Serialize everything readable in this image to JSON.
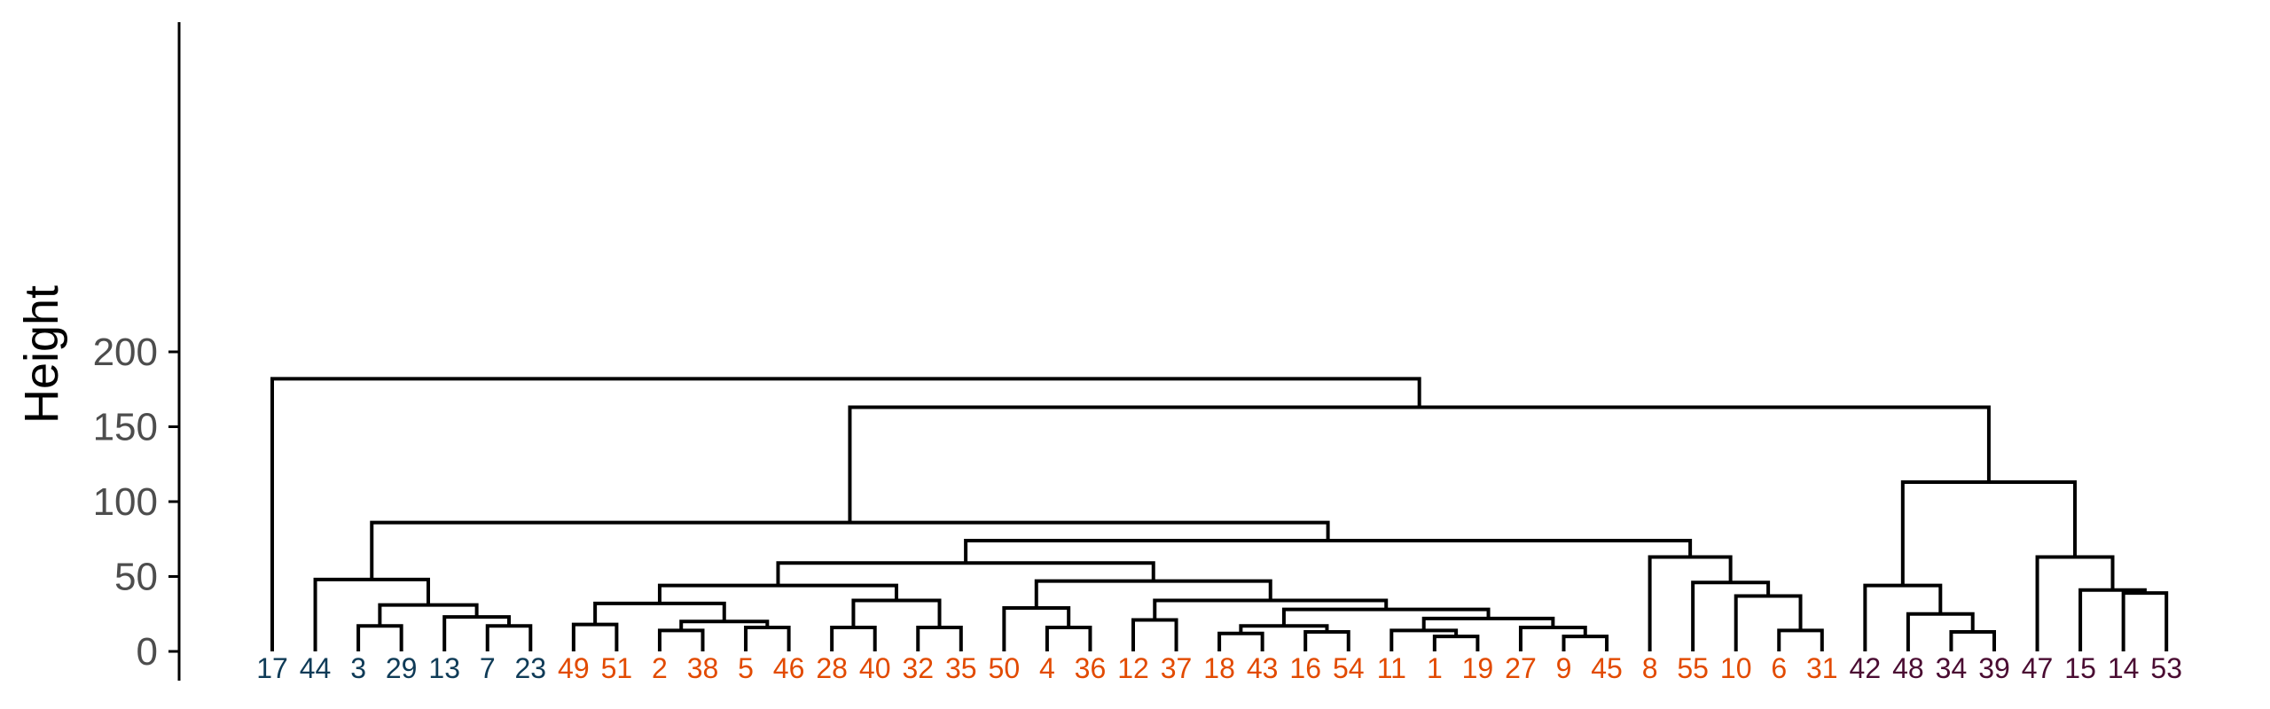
{
  "chart_data": {
    "type": "dendrogram",
    "ylabel": "Height",
    "ylim": [
      0,
      210
    ],
    "y_ticks": [
      0,
      50,
      100,
      150,
      200
    ],
    "grid": false,
    "leaf_order": [
      "17",
      "44",
      "3",
      "29",
      "13",
      "7",
      "23",
      "49",
      "51",
      "2",
      "38",
      "5",
      "46",
      "28",
      "40",
      "32",
      "35",
      "50",
      "4",
      "36",
      "12",
      "37",
      "18",
      "43",
      "16",
      "54",
      "11",
      "1",
      "19",
      "27",
      "9",
      "45",
      "8",
      "55",
      "10",
      "6",
      "31",
      "42",
      "48",
      "34",
      "39",
      "47",
      "15",
      "14",
      "53"
    ],
    "clusters": [
      {
        "color": "#0f3b57",
        "leaves": [
          "17",
          "44",
          "3",
          "29",
          "13",
          "7",
          "23"
        ]
      },
      {
        "color": "#e24a00",
        "leaves": [
          "49",
          "51",
          "2",
          "38",
          "5",
          "46",
          "28",
          "40",
          "32",
          "35",
          "50",
          "4",
          "36",
          "12",
          "37",
          "18",
          "43",
          "16",
          "54",
          "11",
          "1",
          "19",
          "27",
          "9",
          "45",
          "8",
          "55",
          "10",
          "6",
          "31"
        ]
      },
      {
        "color": "#4a0c32",
        "leaves": [
          "42",
          "48",
          "34",
          "39",
          "47",
          "15",
          "14",
          "53"
        ]
      }
    ],
    "merges": [
      {
        "id": "m1",
        "left": "3",
        "right": "29",
        "height": 17
      },
      {
        "id": "m2",
        "left": "7",
        "right": "23",
        "height": 17
      },
      {
        "id": "m3",
        "left": "13",
        "right": "m2",
        "height": 23
      },
      {
        "id": "m4",
        "left": "m1",
        "right": "m3",
        "height": 31
      },
      {
        "id": "m5",
        "left": "44",
        "right": "m4",
        "height": 48
      },
      {
        "id": "m6",
        "left": "49",
        "right": "51",
        "height": 18
      },
      {
        "id": "m7",
        "left": "2",
        "right": "38",
        "height": 14
      },
      {
        "id": "m8",
        "left": "5",
        "right": "46",
        "height": 16
      },
      {
        "id": "m9",
        "left": "m7",
        "right": "m8",
        "height": 20
      },
      {
        "id": "m10",
        "left": "m6",
        "right": "m9",
        "height": 32
      },
      {
        "id": "m11",
        "left": "28",
        "right": "40",
        "height": 16
      },
      {
        "id": "m12",
        "left": "32",
        "right": "35",
        "height": 16
      },
      {
        "id": "m13",
        "left": "m11",
        "right": "m12",
        "height": 34
      },
      {
        "id": "m14",
        "left": "m10",
        "right": "m13",
        "height": 44
      },
      {
        "id": "m15",
        "left": "4",
        "right": "36",
        "height": 16
      },
      {
        "id": "m16",
        "left": "50",
        "right": "m15",
        "height": 29
      },
      {
        "id": "m17",
        "left": "12",
        "right": "37",
        "height": 21
      },
      {
        "id": "m18",
        "left": "18",
        "right": "43",
        "height": 12
      },
      {
        "id": "m19",
        "left": "16",
        "right": "54",
        "height": 13
      },
      {
        "id": "m20",
        "left": "m18",
        "right": "m19",
        "height": 17
      },
      {
        "id": "m21",
        "left": "1",
        "right": "19",
        "height": 10
      },
      {
        "id": "m22",
        "left": "11",
        "right": "m21",
        "height": 14
      },
      {
        "id": "m23",
        "left": "9",
        "right": "45",
        "height": 10
      },
      {
        "id": "m24",
        "left": "27",
        "right": "m23",
        "height": 16
      },
      {
        "id": "m25",
        "left": "m22",
        "right": "m24",
        "height": 22
      },
      {
        "id": "m26",
        "left": "m20",
        "right": "m25",
        "height": 28
      },
      {
        "id": "m27",
        "left": "m17",
        "right": "m26",
        "height": 34
      },
      {
        "id": "m28",
        "left": "m16",
        "right": "m27",
        "height": 47
      },
      {
        "id": "m29",
        "left": "m14",
        "right": "m28",
        "height": 59
      },
      {
        "id": "m30",
        "left": "6",
        "right": "31",
        "height": 14
      },
      {
        "id": "m31",
        "left": "10",
        "right": "m30",
        "height": 37
      },
      {
        "id": "m32",
        "left": "55",
        "right": "m31",
        "height": 46
      },
      {
        "id": "m33",
        "left": "8",
        "right": "m32",
        "height": 63
      },
      {
        "id": "m34",
        "left": "m29",
        "right": "m33",
        "height": 74
      },
      {
        "id": "m35",
        "left": "m5",
        "right": "m34",
        "height": 86
      },
      {
        "id": "m36",
        "left": "34",
        "right": "39",
        "height": 13
      },
      {
        "id": "m37",
        "left": "48",
        "right": "m36",
        "height": 25
      },
      {
        "id": "m38",
        "left": "42",
        "right": "m37",
        "height": 44
      },
      {
        "id": "m39",
        "left": "14",
        "right": "53",
        "height": 39
      },
      {
        "id": "m40",
        "left": "15",
        "right": "m39",
        "height": 41
      },
      {
        "id": "m41",
        "left": "47",
        "right": "m40",
        "height": 63
      },
      {
        "id": "m42",
        "left": "m38",
        "right": "m41",
        "height": 113
      },
      {
        "id": "m43",
        "left": "m35",
        "right": "m42",
        "height": 163
      },
      {
        "id": "m44",
        "left": "17",
        "right": "m43",
        "height": 182
      }
    ]
  }
}
